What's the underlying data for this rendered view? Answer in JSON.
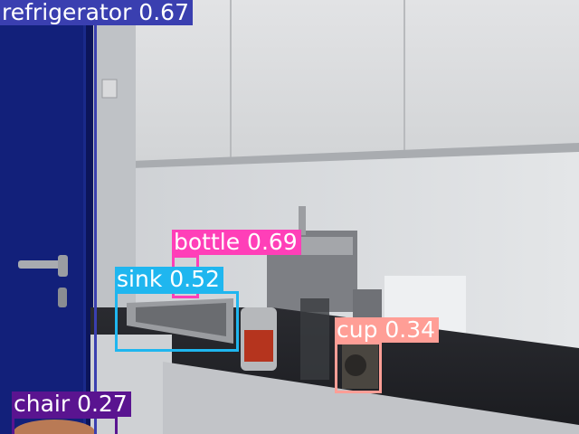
{
  "detections": [
    {
      "id": "refrigerator",
      "label": "refrigerator 0.67",
      "color": "#3a3fb0"
    },
    {
      "id": "bottle",
      "label": "bottle 0.69",
      "color": "#ff3fb8"
    },
    {
      "id": "sink",
      "label": "sink 0.52",
      "color": "#1fb6ef"
    },
    {
      "id": "cup",
      "label": "cup 0.34",
      "color": "#ff9e96"
    },
    {
      "id": "chair",
      "label": "chair 0.27",
      "color": "#5a1490"
    }
  ]
}
